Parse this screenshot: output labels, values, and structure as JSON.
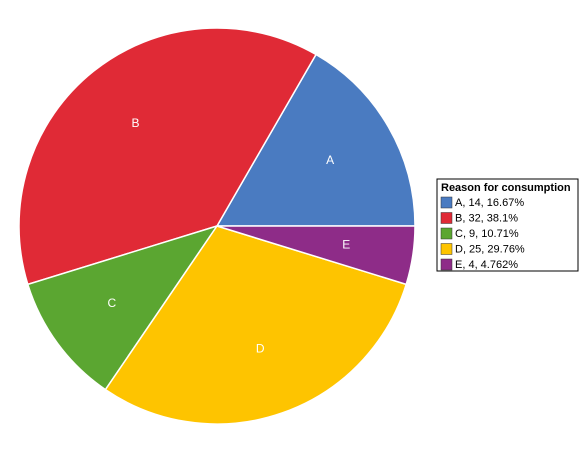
{
  "chart_data": {
    "type": "pie",
    "legend_title": "Reason for consumption",
    "categories": [
      "A",
      "B",
      "C",
      "D",
      "E"
    ],
    "values": [
      14,
      32,
      9,
      25,
      4
    ],
    "legend_labels": [
      "A, 14, 16.67%",
      "B, 32, 38.1%",
      "C, 9, 10.71%",
      "D, 25, 29.76%",
      "E, 4, 4.762%"
    ],
    "colors": [
      "#4a7bc1",
      "#e02a36",
      "#5ba631",
      "#fec400",
      "#8e2c88"
    ],
    "legend": "right"
  }
}
